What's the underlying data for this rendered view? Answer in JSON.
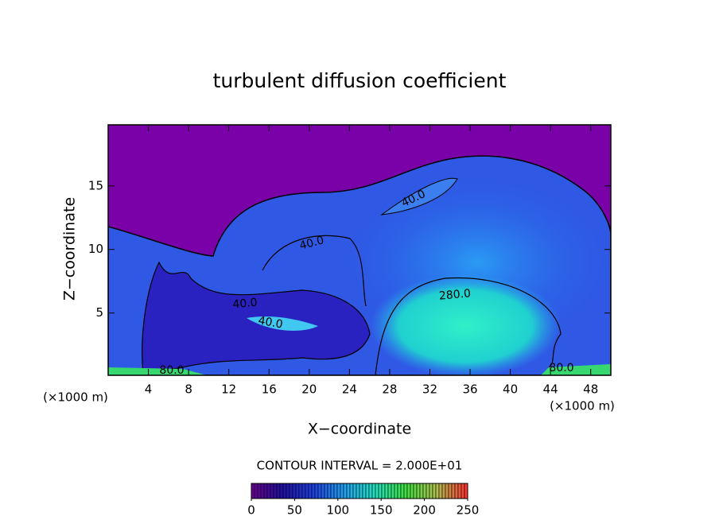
{
  "chart_data": {
    "type": "contour",
    "title": "turbulent diffusion coefficient",
    "x_label": "X−coordinate",
    "y_label": "Z−coordinate",
    "x_unit": "(×1000 m)",
    "x_unit_right": "(×1000 m)",
    "xlim": [
      0,
      50
    ],
    "xticks": [
      4,
      8,
      12,
      16,
      20,
      24,
      28,
      32,
      36,
      40,
      44,
      48
    ],
    "ylim": [
      0.1,
      19.8
    ],
    "yticks": [
      5,
      10,
      15
    ],
    "contour_labels": [
      {
        "value": 40,
        "label": "40.0"
      },
      {
        "value": 40,
        "label": "40.0"
      },
      {
        "value": 40,
        "label": "40.0"
      },
      {
        "value": 40,
        "label": "40.0"
      },
      {
        "value": 280,
        "label": "280.0"
      },
      {
        "value": 80,
        "label": "80.0"
      },
      {
        "value": 80,
        "label": "80.0"
      }
    ],
    "contour_interval_text": "CONTOUR INTERVAL = 2.000E+01",
    "colorbar_lim": [
      0,
      250
    ],
    "colorbar_ticks": [
      0,
      50,
      100,
      150,
      200,
      250
    ],
    "colormap": [
      "#6a0090",
      "#2010a0",
      "#2040e0",
      "#20a0f0",
      "#20e0c0",
      "#40e040",
      "#b0c050",
      "#ff3030"
    ]
  }
}
